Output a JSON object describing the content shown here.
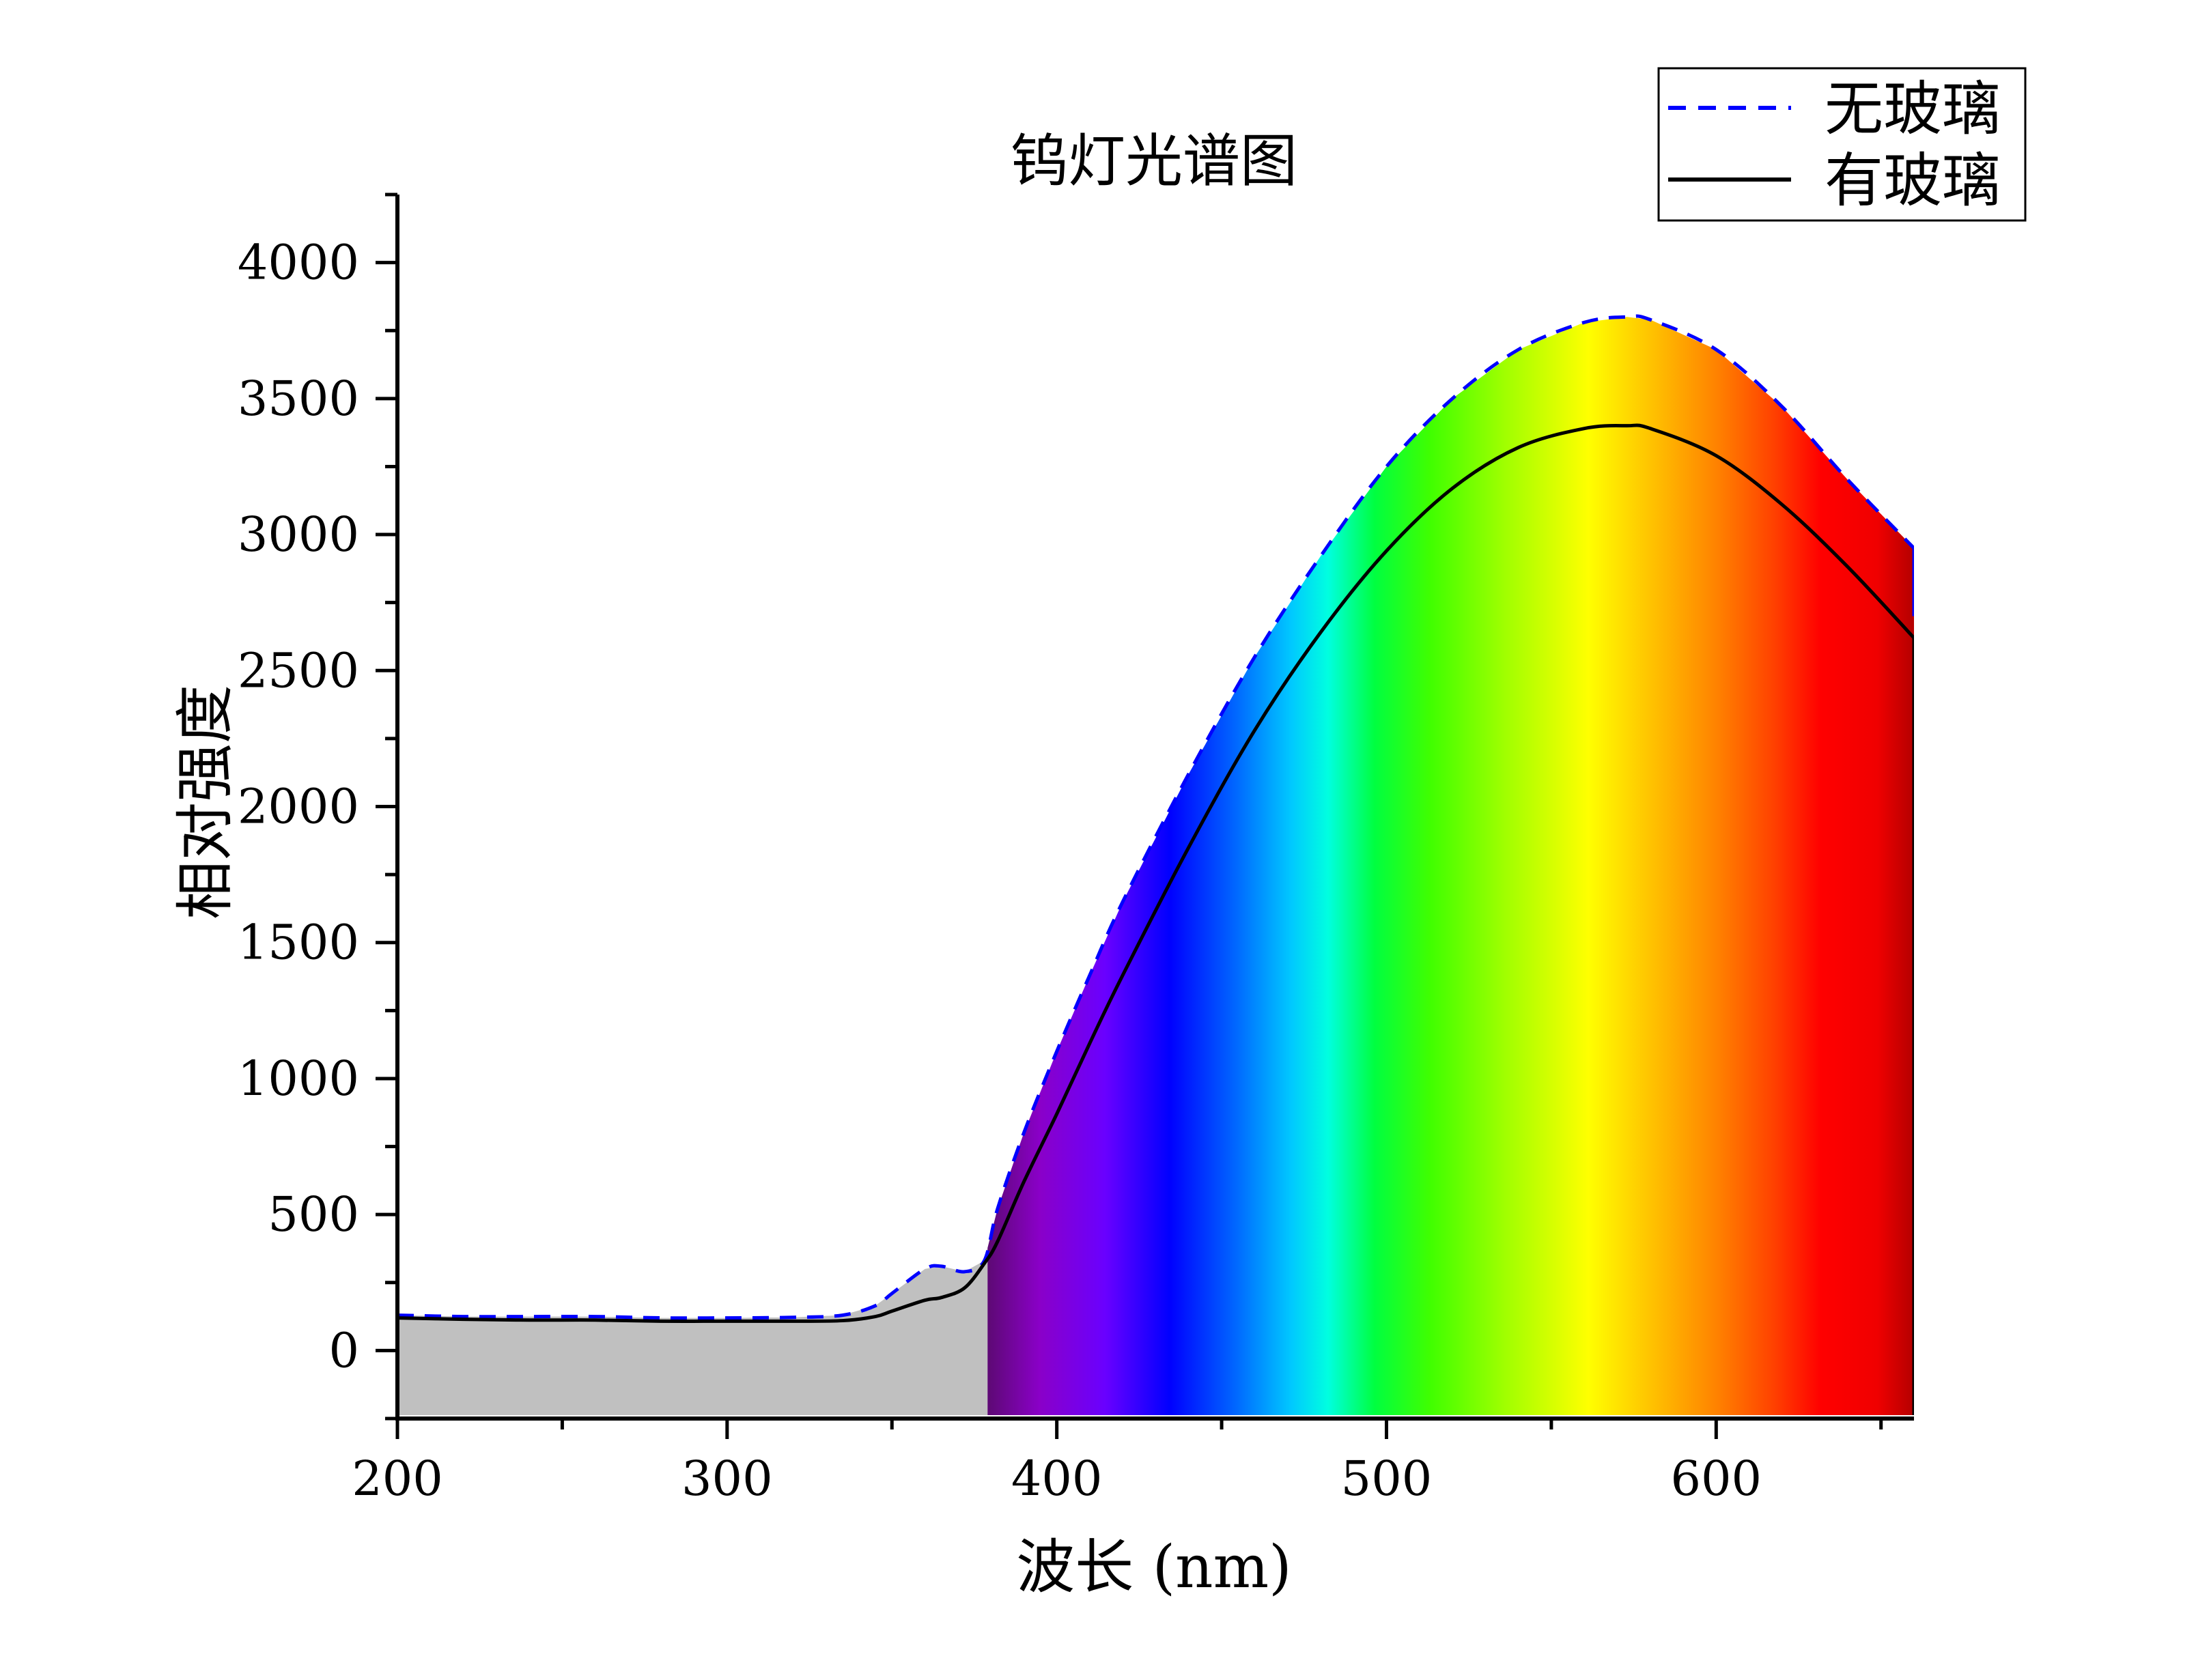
{
  "chart_data": {
    "type": "line",
    "title": "钨灯光谱图",
    "xlabel": "波长 (nm)",
    "ylabel": "相对强度",
    "xlim": [
      200,
      660
    ],
    "ylim": [
      -250,
      4250
    ],
    "xticks": [
      200,
      300,
      400,
      500,
      600
    ],
    "yticks": [
      0,
      500,
      1000,
      1500,
      2000,
      2500,
      3000,
      3500,
      4000
    ],
    "legend_position": "top-right",
    "grid": false,
    "background_fill": "visible-spectrum gradient under the curve from 379 nm to 660 nm; grey (#c0c0c0) fill from 200 nm to 379 nm",
    "series": [
      {
        "name": "无玻璃",
        "style": "dashed",
        "color": "#0000ff",
        "x": [
          200,
          220,
          240,
          260,
          280,
          300,
          320,
          335,
          345,
          350,
          360,
          365,
          372,
          378,
          382,
          390,
          400,
          410,
          420,
          440,
          460,
          480,
          500,
          520,
          540,
          560,
          573,
          580,
          600,
          620,
          640,
          660
        ],
        "values": [
          130,
          125,
          125,
          125,
          120,
          120,
          122,
          130,
          165,
          210,
          300,
          310,
          290,
          330,
          520,
          800,
          1100,
          1380,
          1650,
          2120,
          2550,
          2920,
          3250,
          3500,
          3680,
          3780,
          3800,
          3790,
          3680,
          3470,
          3200,
          2950
        ]
      },
      {
        "name": "有玻璃",
        "style": "solid",
        "color": "#000000",
        "x": [
          200,
          220,
          240,
          260,
          280,
          300,
          320,
          335,
          345,
          350,
          360,
          365,
          372,
          378,
          382,
          390,
          400,
          410,
          420,
          440,
          460,
          480,
          500,
          520,
          540,
          560,
          573,
          580,
          600,
          620,
          640,
          660
        ],
        "values": [
          120,
          115,
          112,
          112,
          108,
          108,
          108,
          110,
          125,
          145,
          185,
          195,
          230,
          320,
          400,
          620,
          870,
          1130,
          1380,
          1850,
          2280,
          2640,
          2940,
          3170,
          3320,
          3390,
          3400,
          3390,
          3290,
          3110,
          2880,
          2620
        ]
      }
    ]
  }
}
